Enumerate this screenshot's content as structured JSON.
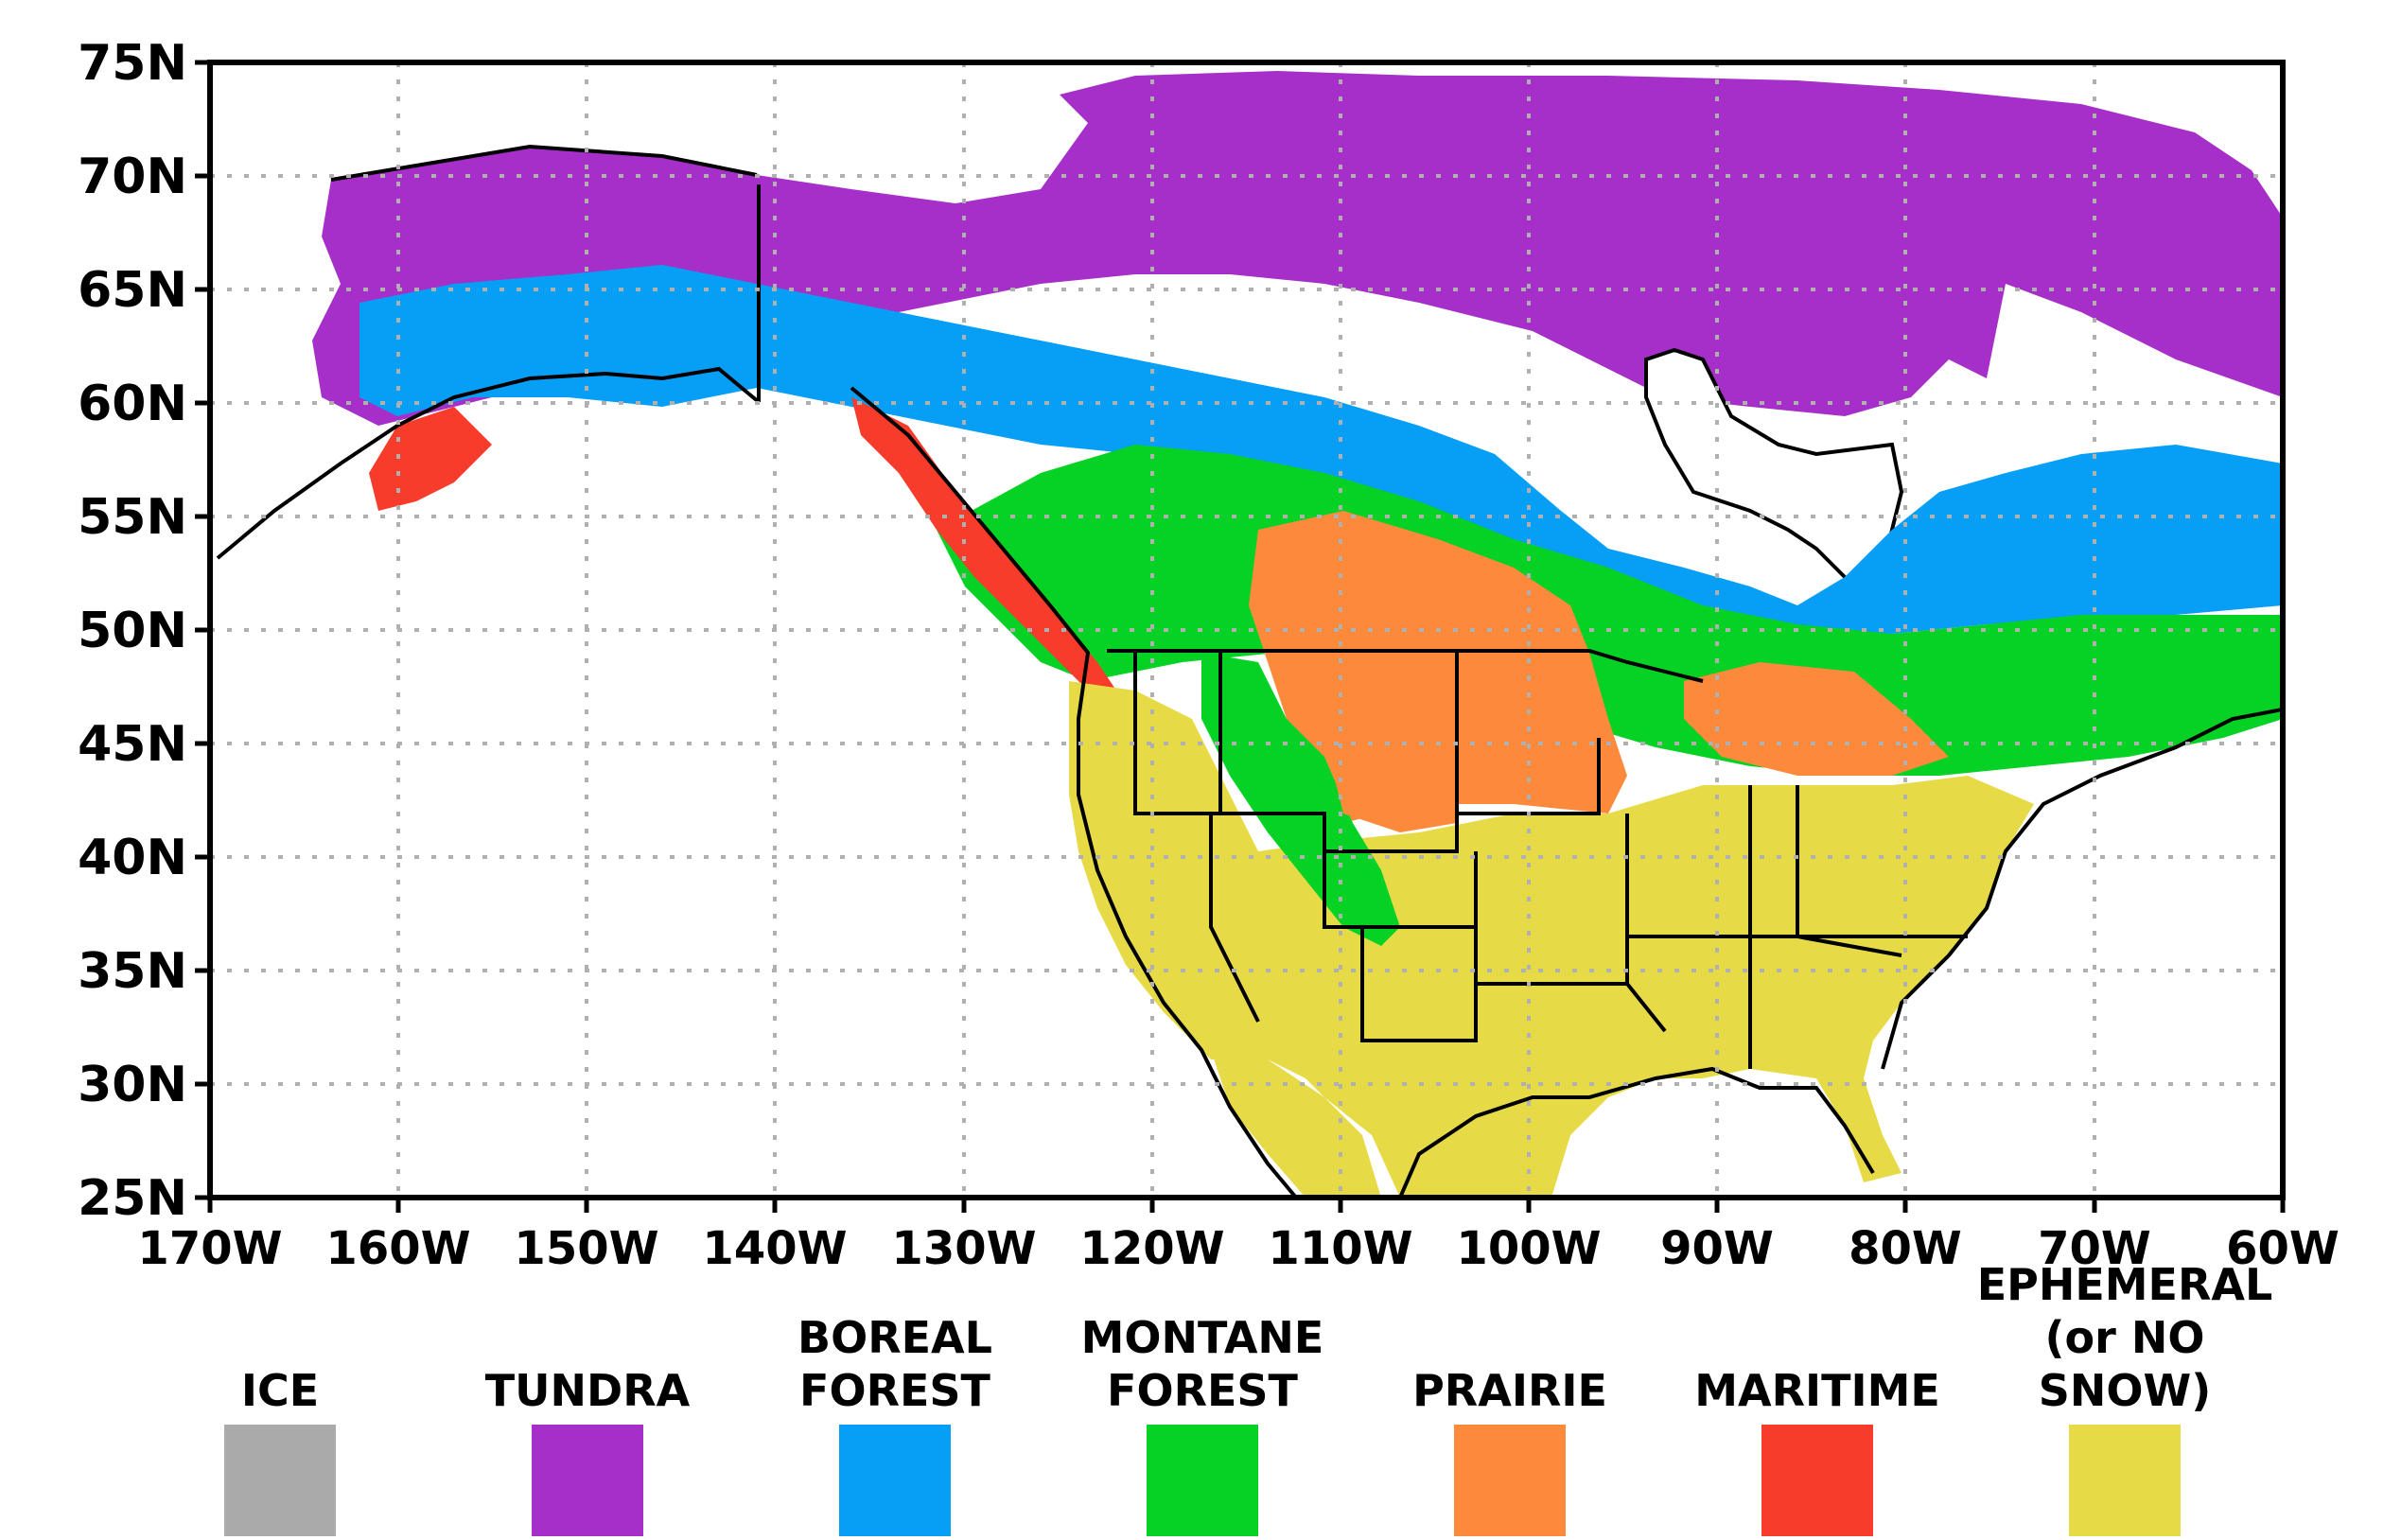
{
  "map": {
    "lat_labels": [
      "75N",
      "70N",
      "65N",
      "60N",
      "55N",
      "50N",
      "45N",
      "40N",
      "35N",
      "30N",
      "25N"
    ],
    "lon_labels": [
      "170W",
      "160W",
      "150W",
      "140W",
      "130W",
      "120W",
      "110W",
      "100W",
      "90W",
      "80W",
      "70W",
      "60W"
    ],
    "lat_range": [
      25,
      75
    ],
    "lon_range": [
      -170,
      -60
    ],
    "grid": "dotted",
    "colors": {
      "water": "#ffffff",
      "border": "#000000",
      "grid": "#b0b0b0",
      "ice": "#aaaaaa",
      "tundra": "#a52fc8",
      "boreal": "#069ff5",
      "montane": "#05d224",
      "prairie": "#fd8a3a",
      "maritime": "#f83c2b",
      "ephemeral": "#e6db47"
    }
  },
  "legend": {
    "items": [
      {
        "label": "ICE",
        "color": "#aaaaaa"
      },
      {
        "label": "TUNDRA",
        "color": "#a52fc8"
      },
      {
        "label": "BOREAL\nFOREST",
        "color": "#069ff5"
      },
      {
        "label": "MONTANE\nFOREST",
        "color": "#05d224"
      },
      {
        "label": "PRAIRIE",
        "color": "#fd8a3a"
      },
      {
        "label": "MARITIME",
        "color": "#f83c2b"
      },
      {
        "label": "EPHEMERAL\n(or NO SNOW)",
        "color": "#e6db47"
      }
    ]
  }
}
